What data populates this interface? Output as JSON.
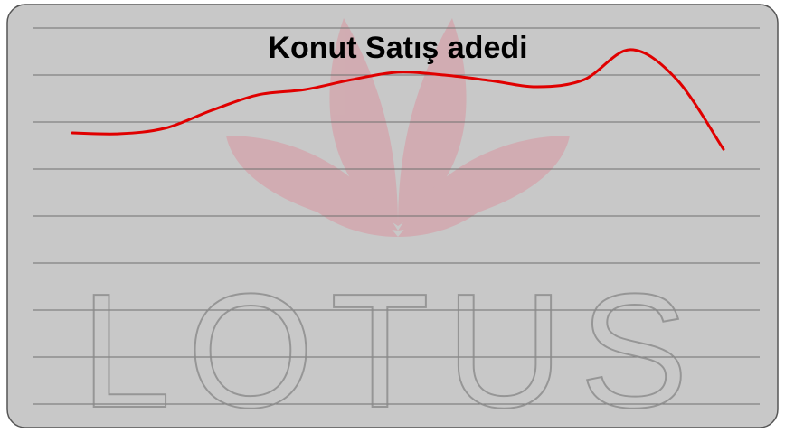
{
  "chart_data": {
    "type": "line",
    "title": "Konut Satış adedi",
    "watermark": "LOTUS",
    "categories": [
      null,
      null,
      null,
      null,
      null,
      null,
      null,
      null,
      null,
      null,
      null,
      null,
      null,
      null,
      null
    ],
    "series": [
      {
        "color": "#e00000",
        "values": [
          5.77,
          5.75,
          5.87,
          6.25,
          6.58,
          6.69,
          6.9,
          7.06,
          7.0,
          6.88,
          6.75,
          6.9,
          7.54,
          6.9,
          5.42
        ]
      }
    ],
    "ylim": [
      0,
      8
    ],
    "yticks": [
      0,
      1,
      2,
      3,
      4,
      5,
      6,
      7,
      8
    ],
    "grid": true
  }
}
